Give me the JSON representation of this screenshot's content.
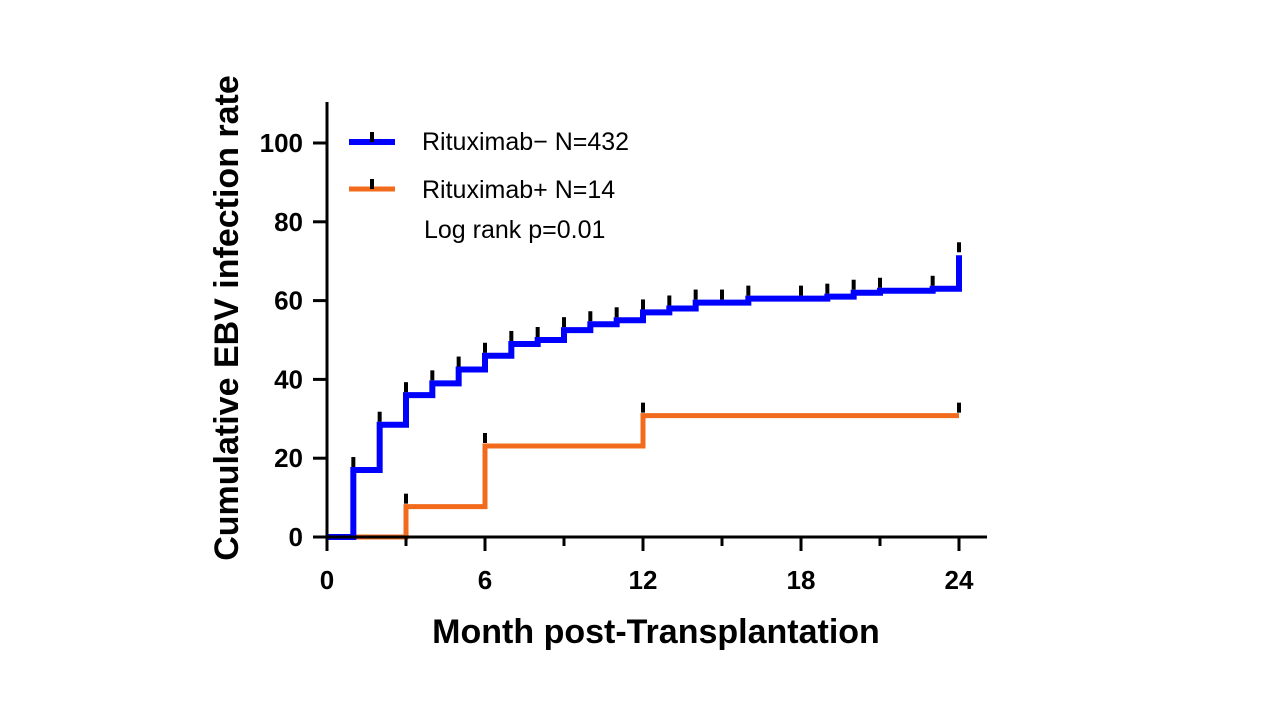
{
  "chart_data": {
    "type": "line",
    "subtype": "step",
    "xlabel": "Month post-Transplantation",
    "ylabel": "Cumulative EBV infection rate",
    "xlim": [
      0,
      24
    ],
    "ylim": [
      0,
      110
    ],
    "xticks": [
      0,
      6,
      12,
      18,
      24
    ],
    "xminor": [
      3,
      9,
      15,
      21
    ],
    "yticks": [
      0,
      20,
      40,
      60,
      80,
      100
    ],
    "grid": false,
    "legend_position": "top-left",
    "annotation": "Log rank p=0.01",
    "series": [
      {
        "name": "Rituximab− N=432",
        "color": "#0000ff",
        "x": [
          0,
          1,
          2,
          3,
          4,
          5,
          6,
          7,
          8,
          9,
          10,
          11,
          12,
          13,
          14,
          15,
          16,
          17,
          18,
          19,
          20,
          21,
          22,
          23,
          24,
          24
        ],
        "y": [
          0,
          17,
          28.5,
          36,
          39,
          42.5,
          46,
          49,
          50,
          52.5,
          54,
          55,
          57,
          58,
          59.5,
          59.5,
          60.5,
          60.5,
          60.5,
          61,
          62,
          62.5,
          62.5,
          63,
          63,
          71.5
        ],
        "censor_x": [
          1,
          2,
          3,
          4,
          5,
          6,
          7,
          8,
          9,
          10,
          11,
          12,
          13,
          14,
          15,
          16,
          18,
          19,
          20,
          21,
          23,
          24
        ],
        "censor_y": [
          17,
          28.5,
          36,
          39,
          42.5,
          46,
          49,
          50,
          52.5,
          54,
          55,
          57,
          58,
          59.5,
          59.5,
          60.5,
          60.5,
          61,
          62,
          62.5,
          63,
          71.5
        ]
      },
      {
        "name": "Rituximab+ N=14",
        "color": "#f26b1d",
        "x": [
          0,
          3,
          6,
          12,
          24
        ],
        "y": [
          0,
          7.7,
          23.1,
          30.8,
          30.8
        ],
        "censor_x": [
          3,
          6,
          12,
          24
        ],
        "censor_y": [
          7.7,
          23.1,
          30.8,
          30.8
        ]
      }
    ]
  }
}
